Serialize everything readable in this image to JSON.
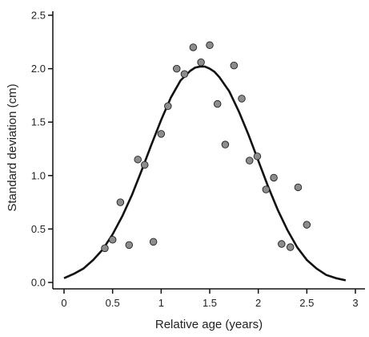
{
  "chart_data": {
    "type": "scatter",
    "xlabel": "Relative age (years)",
    "ylabel": "Standard deviation (cm)",
    "xlim": [
      0,
      3
    ],
    "ylim": [
      0,
      2.5
    ],
    "x_ticks": [
      0,
      0.5,
      1,
      1.5,
      2,
      2.5,
      3
    ],
    "x_tick_labels": [
      "0",
      "0.5",
      "1",
      "1.5",
      "2",
      "2.5",
      "3"
    ],
    "y_ticks": [
      0,
      0.5,
      1.0,
      1.5,
      2.0,
      2.5
    ],
    "y_tick_labels": [
      "0.0",
      "0.5",
      "1.0",
      "1.5",
      "2.0",
      "2.5"
    ],
    "grid": false,
    "legend": "none",
    "colors": {
      "points": "#8c8c8c",
      "point_edge": "#222222",
      "curve": "#111111",
      "axes": "#111111"
    },
    "series": [
      {
        "type": "scatter",
        "points": [
          [
            0.42,
            0.32
          ],
          [
            0.5,
            0.4
          ],
          [
            0.58,
            0.75
          ],
          [
            0.67,
            0.35
          ],
          [
            0.76,
            1.15
          ],
          [
            0.83,
            1.1
          ],
          [
            0.92,
            0.38
          ],
          [
            1.0,
            1.39
          ],
          [
            1.07,
            1.65
          ],
          [
            1.16,
            2.0
          ],
          [
            1.24,
            1.95
          ],
          [
            1.33,
            2.2
          ],
          [
            1.41,
            2.06
          ],
          [
            1.5,
            2.22
          ],
          [
            1.58,
            1.67
          ],
          [
            1.66,
            1.29
          ],
          [
            1.75,
            2.03
          ],
          [
            1.83,
            1.72
          ],
          [
            1.91,
            1.14
          ],
          [
            1.99,
            1.18
          ],
          [
            2.08,
            0.87
          ],
          [
            2.16,
            0.98
          ],
          [
            2.24,
            0.36
          ],
          [
            2.33,
            0.33
          ],
          [
            2.41,
            0.89
          ],
          [
            2.5,
            0.54
          ]
        ]
      },
      {
        "type": "line",
        "x": [
          0.0,
          0.1,
          0.2,
          0.3,
          0.4,
          0.5,
          0.6,
          0.7,
          0.8,
          0.9,
          1.0,
          1.1,
          1.2,
          1.3,
          1.35,
          1.4,
          1.45,
          1.5,
          1.55,
          1.6,
          1.7,
          1.8,
          1.9,
          2.0,
          2.1,
          2.2,
          2.3,
          2.4,
          2.5,
          2.6,
          2.7,
          2.8,
          2.9
        ],
        "values": [
          0.04,
          0.08,
          0.13,
          0.21,
          0.31,
          0.45,
          0.62,
          0.82,
          1.05,
          1.29,
          1.52,
          1.73,
          1.89,
          1.98,
          2.01,
          2.02,
          2.02,
          2.0,
          1.97,
          1.92,
          1.79,
          1.6,
          1.38,
          1.14,
          0.9,
          0.68,
          0.49,
          0.33,
          0.21,
          0.13,
          0.07,
          0.04,
          0.02
        ]
      }
    ]
  }
}
